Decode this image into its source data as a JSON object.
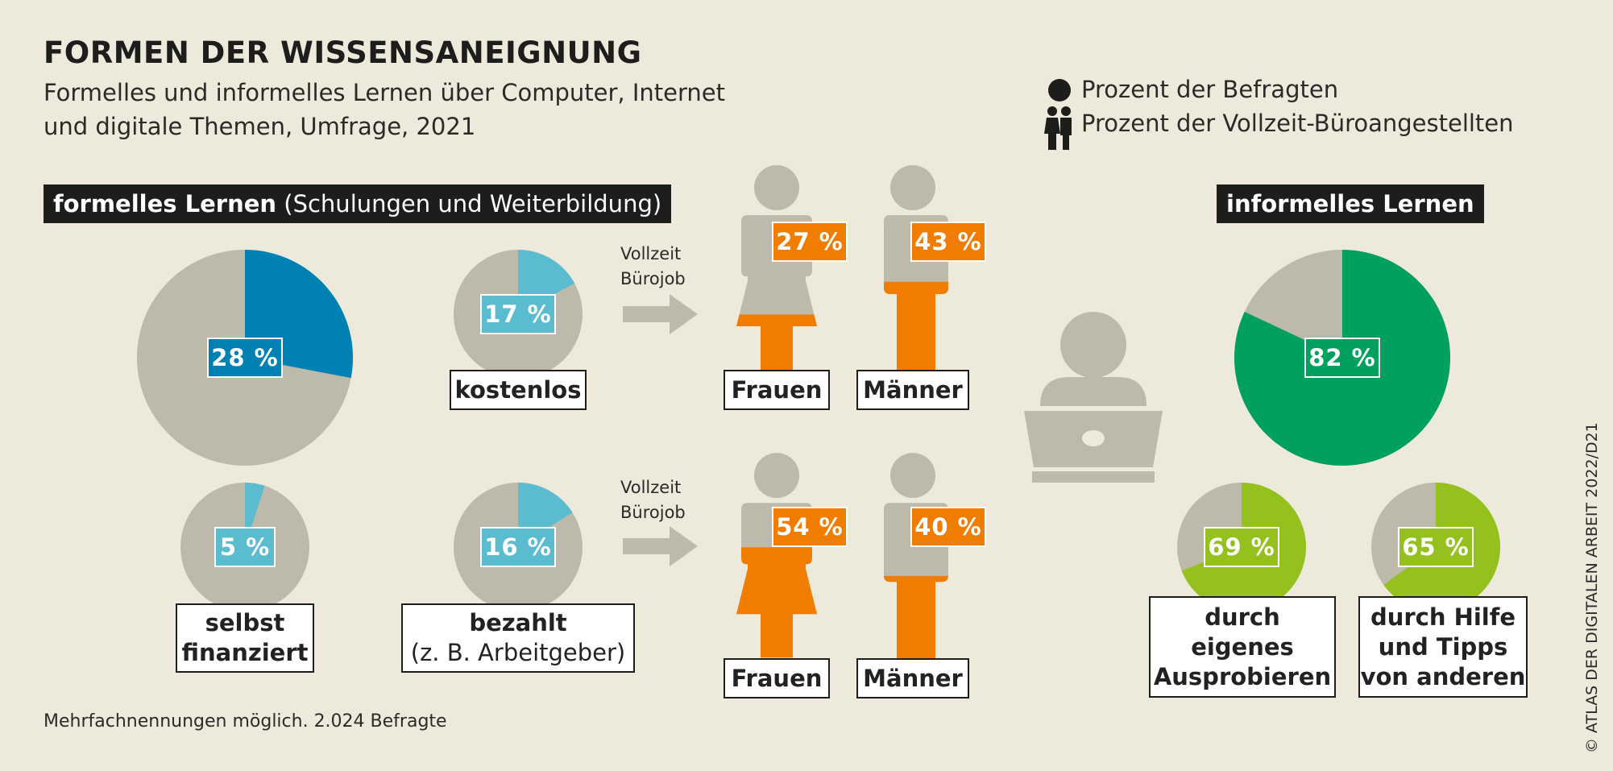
{
  "title": "FORMEN DER WISSENSANEIGNUNG",
  "subtitle_line1": "Formelles und informelles Lernen über Computer, Internet",
  "subtitle_line2": "und digitale Themen, Umfrage, 2021",
  "legend": {
    "dot_label": "Prozent der Befragten",
    "people_label": "Prozent der Vollzeit-Büroangestellten"
  },
  "sections": {
    "formal_bold": "formelles Lernen",
    "formal_rest": "(Schulungen und Weiterbildung)",
    "informal": "informelles Lernen"
  },
  "arrow_text_line1": "Vollzeit",
  "arrow_text_line2": "Bürojob",
  "labels": {
    "kostenlos": "kostenlos",
    "selbst_line1": "selbst",
    "selbst_line2": "finanziert",
    "bezahlt_line1": "bezahlt",
    "bezahlt_line2": "(z. B. Arbeitgeber)",
    "frauen": "Frauen",
    "maenner": "Männer",
    "eigen_line1": "durch",
    "eigen_line2": "eigenes",
    "eigen_line3": "Ausprobieren",
    "hilfe_line1": "durch Hilfe",
    "hilfe_line2": "und Tipps",
    "hilfe_line3": "von anderen"
  },
  "note": "Mehrfachnennungen möglich. 2.024 Befragte",
  "credit": "© ATLAS DER DIGITALEN ARBEIT 2022/D21",
  "colors": {
    "background": "#edeadc",
    "grey": "#bdbaab",
    "blue": "#0081b4",
    "lightblue": "#5cbccf",
    "orange": "#f07d00",
    "green": "#00a05f",
    "lime": "#95c11f"
  },
  "chart_data": [
    {
      "type": "pie",
      "name": "formelles Lernen gesamt",
      "values": [
        28,
        72
      ],
      "label": "28 %"
    },
    {
      "type": "pie",
      "name": "kostenlos",
      "values": [
        17,
        83
      ],
      "label": "17 %"
    },
    {
      "type": "pie",
      "name": "selbst finanziert",
      "values": [
        5,
        95
      ],
      "label": "5 %"
    },
    {
      "type": "pie",
      "name": "bezahlt",
      "values": [
        16,
        84
      ],
      "label": "16 %"
    },
    {
      "type": "bar",
      "name": "kostenlos Vollzeit Bürojob",
      "categories": [
        "Frauen",
        "Männer"
      ],
      "values": [
        27,
        43
      ],
      "labels": [
        "27 %",
        "43 %"
      ]
    },
    {
      "type": "bar",
      "name": "bezahlt Vollzeit Bürojob",
      "categories": [
        "Frauen",
        "Männer"
      ],
      "values": [
        54,
        40
      ],
      "labels": [
        "54 %",
        "40 %"
      ]
    },
    {
      "type": "pie",
      "name": "informelles Lernen gesamt",
      "values": [
        82,
        18
      ],
      "label": "82 %"
    },
    {
      "type": "pie",
      "name": "durch eigenes Ausprobieren",
      "values": [
        69,
        31
      ],
      "label": "69 %"
    },
    {
      "type": "pie",
      "name": "durch Hilfe und Tipps von anderen",
      "values": [
        65,
        35
      ],
      "label": "65 %"
    }
  ]
}
